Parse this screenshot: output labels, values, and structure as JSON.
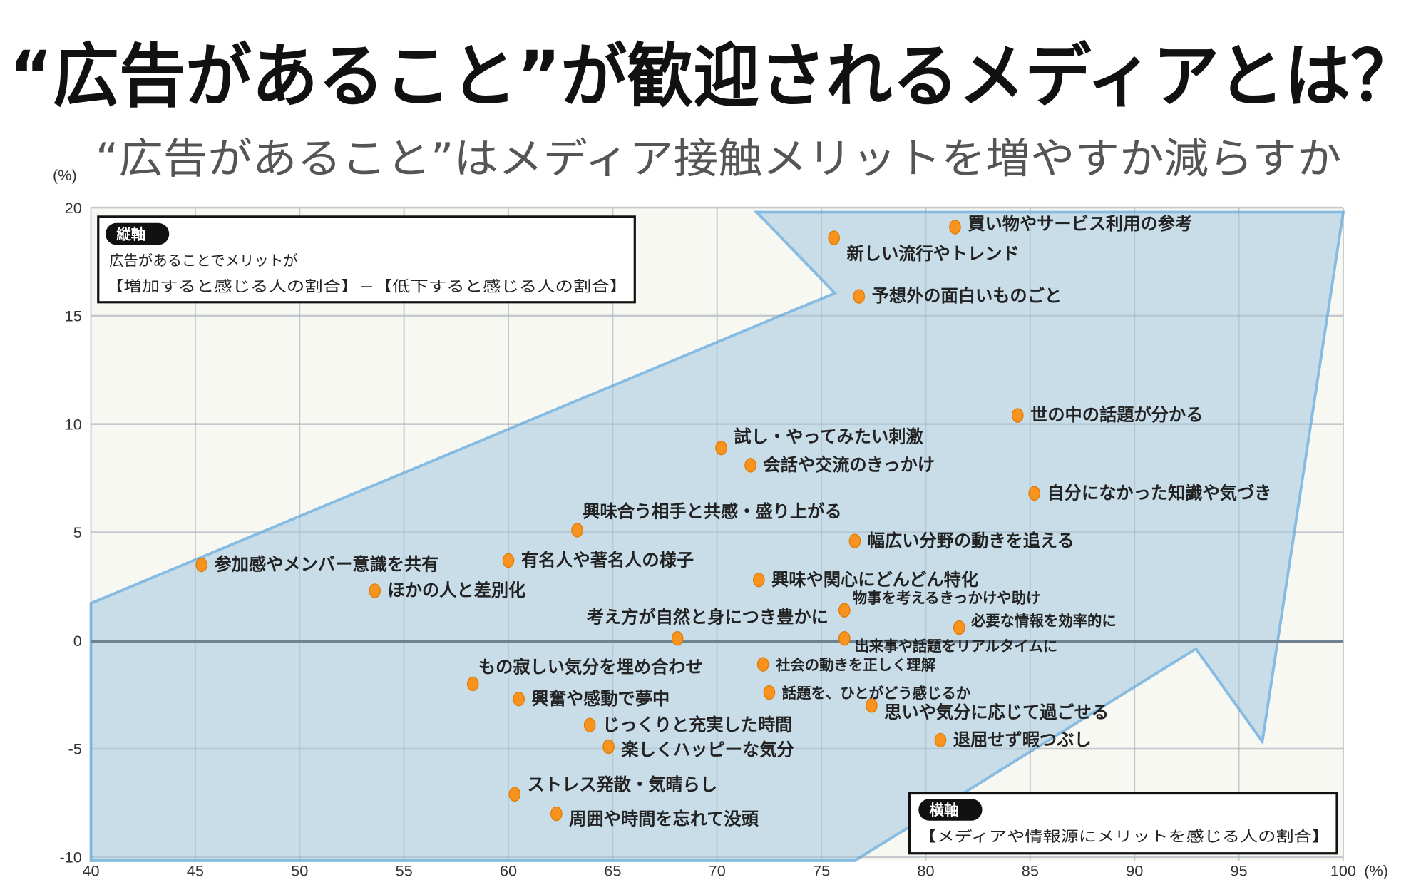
{
  "title": "“広告があること”が歓迎されるメディアとは？",
  "subtitle": "“広告があること”はメディア接触メリットを増やすか減らすか",
  "colors": {
    "point": "#f7931e",
    "arrow_fill": "#c9dde9",
    "arrow_stroke": "#86bbe2",
    "plot_bg": "#f8f8f3",
    "grid": "#dedede"
  },
  "chart_data": {
    "type": "scatter",
    "title": "“広告があること”はメディア接触メリットを増やすか減らすか",
    "xlim": [
      40,
      100
    ],
    "ylim": [
      -10,
      20
    ],
    "x_ticks": [
      "40",
      "45",
      "50",
      "55",
      "60",
      "65",
      "70",
      "75",
      "80",
      "85",
      "90",
      "95",
      "100"
    ],
    "y_ticks": [
      "20",
      "15",
      "10",
      "5",
      "0",
      "-5",
      "-10"
    ],
    "x_unit": "(%)",
    "y_unit": "(%)",
    "grid": true,
    "y_axis_box": {
      "badge": "縦軸",
      "line1": "広告があることでメリットが",
      "line2": "【増加すると感じる人の割合】−【低下すると感じる人の割合】"
    },
    "x_axis_box": {
      "badge": "横軸",
      "line1": "【メディアや情報源にメリットを感じる人の割合】"
    },
    "points": [
      {
        "label": "買い物やサービス利用の参考",
        "x": 81.4,
        "y": 19.1
      },
      {
        "label": "新しい流行やトレンド",
        "x": 75.6,
        "y": 18.6
      },
      {
        "label": "予想外の面白いものごと",
        "x": 76.8,
        "y": 15.9
      },
      {
        "label": "世の中の話題が分かる",
        "x": 84.4,
        "y": 10.4
      },
      {
        "label": "試し・やってみたい刺激",
        "x": 70.2,
        "y": 8.9
      },
      {
        "label": "会話や交流のきっかけ",
        "x": 71.6,
        "y": 8.1
      },
      {
        "label": "自分になかった知識や気づき",
        "x": 85.2,
        "y": 6.8
      },
      {
        "label": "興味合う相手と共感・盛り上がる",
        "x": 63.3,
        "y": 5.1
      },
      {
        "label": "幅広い分野の動きを追える",
        "x": 76.6,
        "y": 4.6
      },
      {
        "label": "参加感やメンバー意識を共有",
        "x": 45.3,
        "y": 3.5
      },
      {
        "label": "有名人や著名人の様子",
        "x": 60.0,
        "y": 3.7
      },
      {
        "label": "興味や関心にどんどん特化",
        "x": 72.0,
        "y": 2.8
      },
      {
        "label": "ほかの人と差別化",
        "x": 53.6,
        "y": 2.3
      },
      {
        "label": "物事を考えるきっかけや助け",
        "x": 76.1,
        "y": 1.4
      },
      {
        "label": "考え方が自然と身につき豊かに",
        "x": 68.1,
        "y": 0.1
      },
      {
        "label": "必要な情報を効率的に",
        "x": 81.6,
        "y": 0.6
      },
      {
        "label": "出来事や話題をリアルタイムに",
        "x": 76.1,
        "y": 0.1
      },
      {
        "label": "社会の動きを正しく理解",
        "x": 72.2,
        "y": -1.1
      },
      {
        "label": "もの寂しい気分を埋め合わせ",
        "x": 58.3,
        "y": -2.0
      },
      {
        "label": "話題を、ひとがどう感じるか",
        "x": 72.5,
        "y": -2.4
      },
      {
        "label": "興奮や感動で夢中",
        "x": 60.5,
        "y": -2.7
      },
      {
        "label": "思いや気分に応じて過ごせる",
        "x": 77.4,
        "y": -3.0
      },
      {
        "label": "じっくりと充実した時間",
        "x": 63.9,
        "y": -3.9
      },
      {
        "label": "退屈せず暇つぶし",
        "x": 80.7,
        "y": -4.6
      },
      {
        "label": "楽しくハッピーな気分",
        "x": 64.8,
        "y": -4.9
      },
      {
        "label": "ストレス発散・気晴らし",
        "x": 60.3,
        "y": -7.1
      },
      {
        "label": "周囲や時間を忘れて没頭",
        "x": 62.3,
        "y": -8.0
      }
    ]
  }
}
